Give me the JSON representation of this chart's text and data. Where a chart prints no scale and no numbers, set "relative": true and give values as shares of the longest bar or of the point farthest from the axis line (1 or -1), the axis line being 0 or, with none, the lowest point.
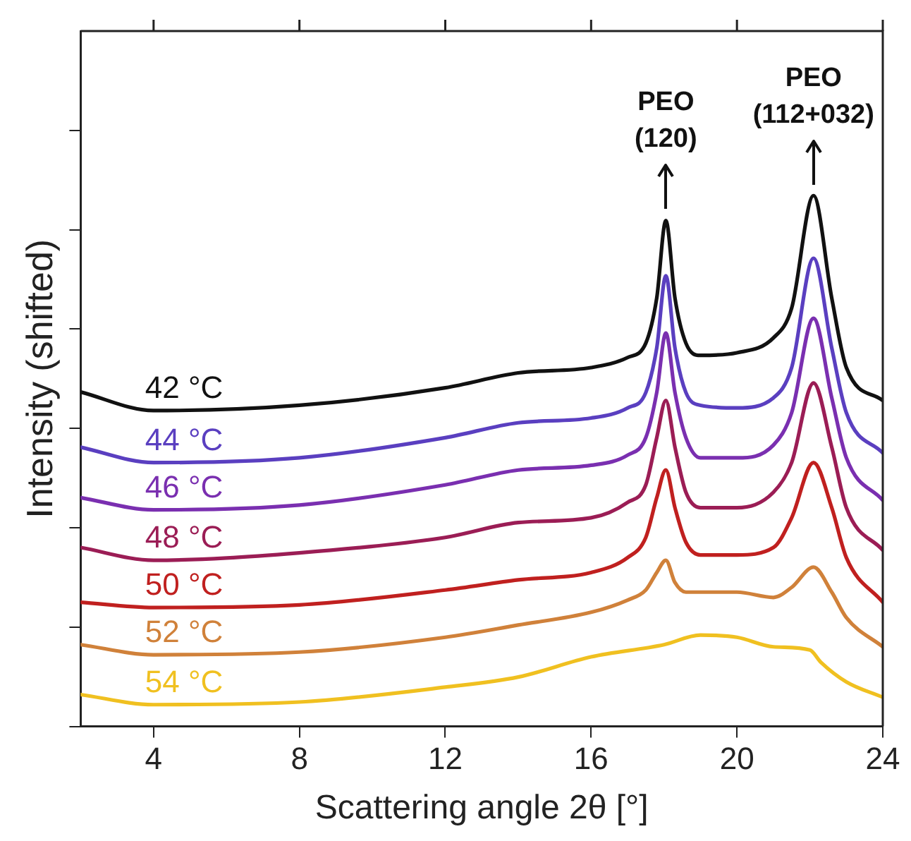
{
  "chart_data": {
    "type": "line",
    "xlabel": "Scattering angle 2θ [°]",
    "ylabel": "Intensity (shifted)",
    "relative": true,
    "xlim": [
      2,
      24
    ],
    "xticks": [
      4,
      8,
      12,
      16,
      20,
      24
    ],
    "grid": false,
    "legend": false,
    "marker": "none",
    "line_style": "solid",
    "x": [
      2,
      4,
      8,
      12,
      14,
      16,
      17,
      17.5,
      17.8,
      18.05,
      18.3,
      18.6,
      19,
      20,
      21,
      21.5,
      22.1,
      22.6,
      23,
      24
    ],
    "series": [
      {
        "name": "42 °C",
        "color": "#111111",
        "values": [
          0.63,
          0.595,
          0.605,
          0.638,
          0.666,
          0.676,
          0.695,
          0.722,
          0.807,
          0.953,
          0.807,
          0.722,
          0.699,
          0.704,
          0.732,
          0.788,
          1.0,
          0.807,
          0.676,
          0.614
        ]
      },
      {
        "name": "44 °C",
        "color": "#5a3fc0",
        "values": [
          0.526,
          0.497,
          0.506,
          0.544,
          0.572,
          0.581,
          0.6,
          0.629,
          0.713,
          0.849,
          0.713,
          0.629,
          0.605,
          0.6,
          0.619,
          0.676,
          0.882,
          0.713,
          0.591,
          0.515
        ]
      },
      {
        "name": "46 °C",
        "color": "#7a2fb0",
        "values": [
          0.431,
          0.408,
          0.417,
          0.455,
          0.483,
          0.492,
          0.511,
          0.544,
          0.629,
          0.741,
          0.629,
          0.544,
          0.506,
          0.506,
          0.53,
          0.591,
          0.769,
          0.619,
          0.506,
          0.426
        ]
      },
      {
        "name": "48 °C",
        "color": "#9b1d55",
        "values": [
          0.337,
          0.313,
          0.327,
          0.356,
          0.384,
          0.393,
          0.422,
          0.455,
          0.544,
          0.614,
          0.526,
          0.441,
          0.412,
          0.412,
          0.441,
          0.497,
          0.647,
          0.526,
          0.412,
          0.332
        ]
      },
      {
        "name": "50 °C",
        "color": "#c0201f",
        "values": [
          0.234,
          0.224,
          0.229,
          0.257,
          0.276,
          0.29,
          0.318,
          0.356,
          0.431,
          0.483,
          0.412,
          0.347,
          0.323,
          0.323,
          0.337,
          0.393,
          0.497,
          0.412,
          0.318,
          0.234
        ]
      },
      {
        "name": "52 °C",
        "color": "#d0813a",
        "values": [
          0.154,
          0.135,
          0.14,
          0.168,
          0.191,
          0.215,
          0.238,
          0.257,
          0.29,
          0.313,
          0.271,
          0.253,
          0.253,
          0.253,
          0.243,
          0.262,
          0.3,
          0.253,
          0.205,
          0.15
        ]
      },
      {
        "name": "54 °C",
        "color": "#f0c020",
        "x": [
          2,
          4,
          8,
          12,
          14,
          16,
          18,
          19,
          20,
          21,
          22,
          22.3,
          23,
          24
        ],
        "values": [
          0.06,
          0.041,
          0.046,
          0.074,
          0.093,
          0.131,
          0.154,
          0.172,
          0.168,
          0.15,
          0.144,
          0.121,
          0.084,
          0.055
        ]
      }
    ],
    "annotations": [
      {
        "text": "PEO (120)",
        "x": 18.05,
        "y": 0.953
      },
      {
        "text": "PEO (112+032)",
        "x": 22.1,
        "y": 1.0
      }
    ]
  }
}
